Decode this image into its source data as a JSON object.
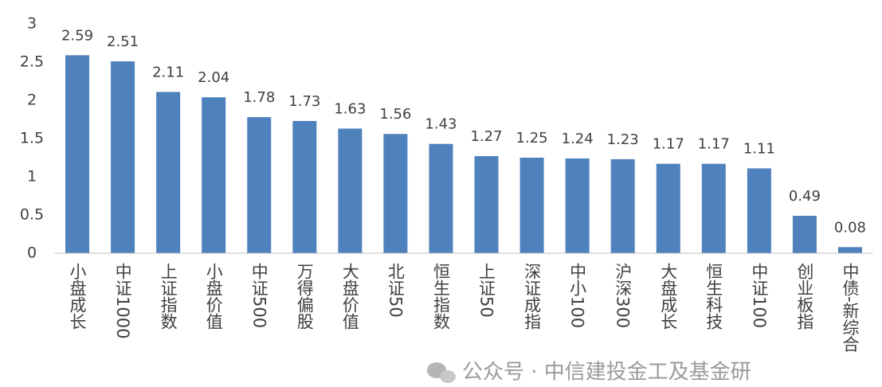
{
  "chart_data": {
    "type": "bar",
    "categories": [
      "小盘成长",
      "中证1000",
      "上证指数",
      "小盘价值",
      "中证500",
      "万得偏股",
      "大盘价值",
      "北证50",
      "恒生指数",
      "上证50",
      "深证成指",
      "中小100",
      "沪深300",
      "大盘成长",
      "恒生科技",
      "中证100",
      "创业板指",
      "中债-新综合"
    ],
    "values": [
      2.59,
      2.51,
      2.11,
      2.04,
      1.78,
      1.73,
      1.63,
      1.56,
      1.43,
      1.27,
      1.25,
      1.24,
      1.23,
      1.17,
      1.17,
      1.11,
      0.49,
      0.08
    ],
    "color": "#4f81bd",
    "ylim": [
      0,
      3
    ],
    "yticks": [
      0,
      0.5,
      1,
      1.5,
      2,
      2.5,
      3
    ],
    "grid": false
  },
  "watermark": "公众号 · 中信建投金工及基金研"
}
